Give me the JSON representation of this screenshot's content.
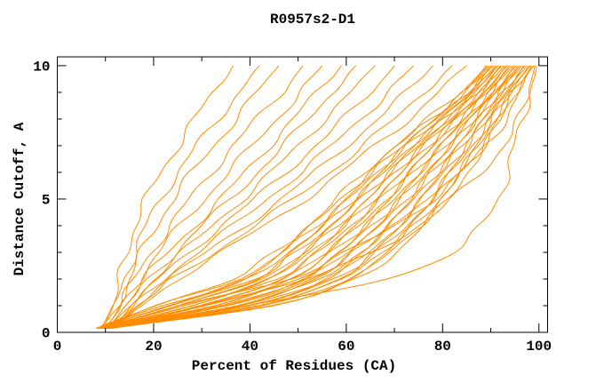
{
  "figure": {
    "title": "R0957s2-D1",
    "xlabel": "Percent of Residues (CA)",
    "ylabel": "Distance Cutoff, A"
  },
  "colors": {
    "curve": "#ff8c00",
    "axis": "#000000",
    "background": "#ffffff"
  },
  "chart_data": {
    "type": "line",
    "title": "R0957s2-D1",
    "xlabel": "Percent of Residues (CA)",
    "ylabel": "Distance Cutoff, A",
    "xlim": [
      0,
      101.8
    ],
    "ylim": [
      0,
      10.33
    ],
    "x_major_ticks": [
      0,
      20,
      40,
      60,
      80,
      100
    ],
    "x_minor_ticks": [
      10,
      30,
      50,
      70,
      90
    ],
    "y_major_ticks": [
      0,
      5,
      10
    ],
    "y_minor_ticks": [
      1,
      2,
      3,
      4,
      6,
      7,
      8,
      9
    ],
    "grid": false,
    "legend": false,
    "line_color": "#ff8c00",
    "curve_y_levels": [
      0.15,
      1,
      2,
      3,
      4,
      5,
      6,
      7,
      8,
      9,
      10
    ],
    "curves": [
      [
        9,
        11.5,
        13,
        14.5,
        16,
        18.5,
        21.5,
        25,
        28.5,
        32.5,
        36.5
      ],
      [
        9,
        12,
        14,
        16,
        18.5,
        21.5,
        25,
        29,
        33.5,
        37.5,
        42
      ],
      [
        9.5,
        12.5,
        15,
        17.5,
        20.5,
        24,
        28,
        32.5,
        37,
        41.5,
        46
      ],
      [
        10,
        13,
        16,
        19.5,
        23.5,
        27.5,
        32,
        36.5,
        41.5,
        46.5,
        51
      ],
      [
        10,
        13.5,
        17,
        21,
        25.5,
        30.5,
        35.5,
        40.5,
        45.5,
        50.5,
        55
      ],
      [
        10.5,
        14,
        18,
        23,
        28.5,
        34,
        39,
        44,
        49,
        54,
        59
      ],
      [
        10.5,
        14.5,
        19,
        24.5,
        30,
        36,
        41.5,
        47,
        52,
        57,
        62
      ],
      [
        11,
        15,
        20,
        26,
        32,
        38.5,
        44.5,
        50,
        55.5,
        61,
        66
      ],
      [
        11,
        15.5,
        21,
        27.5,
        34,
        41,
        47.5,
        53.5,
        59.5,
        65,
        70
      ],
      [
        11,
        16,
        22,
        29,
        36.5,
        43.5,
        50.5,
        57,
        63,
        68.5,
        74
      ],
      [
        11.5,
        16.5,
        23,
        31,
        39,
        46.5,
        53.5,
        60,
        66.5,
        72.5,
        78
      ],
      [
        11.5,
        17,
        24,
        32.5,
        41,
        49,
        56.5,
        63.5,
        70,
        76,
        82
      ],
      [
        12,
        17.5,
        25,
        34,
        43,
        51.5,
        59,
        66,
        73,
        79,
        85
      ],
      [
        8,
        20,
        37,
        45,
        52,
        58,
        64,
        70,
        77,
        84,
        89
      ],
      [
        8.1,
        20.9,
        37.9,
        45.9,
        52.9,
        58.9,
        64.8,
        70.7,
        77.6,
        84.4,
        89.4
      ],
      [
        8.2,
        21.9,
        38.9,
        46.9,
        53.8,
        59.7,
        65.6,
        71.4,
        78.1,
        84.8,
        89.7
      ],
      [
        8.3,
        22.8,
        39.8,
        47.8,
        54.7,
        60.6,
        66.3,
        72.1,
        78.7,
        85.2,
        90.1
      ],
      [
        8.4,
        23.7,
        40.7,
        48.7,
        55.6,
        61.4,
        67.1,
        72.8,
        79.2,
        85.6,
        90.5
      ],
      [
        8.6,
        24.6,
        41.6,
        49.6,
        56.4,
        62.3,
        67.9,
        73.5,
        79.8,
        86.0,
        90.9
      ],
      [
        8.7,
        25.6,
        42.6,
        50.6,
        57.3,
        63.1,
        68.7,
        74.2,
        80.3,
        86.4,
        91.2
      ],
      [
        8.8,
        26.5,
        43.5,
        51.5,
        58.2,
        64.0,
        69.4,
        74.9,
        80.9,
        86.9,
        91.6
      ],
      [
        8.9,
        27.4,
        44.4,
        52.4,
        59.1,
        64.8,
        70.2,
        75.6,
        81.4,
        87.3,
        92.0
      ],
      [
        9.0,
        28.3,
        45.3,
        53.3,
        60.0,
        65.7,
        71.0,
        76.3,
        82.0,
        87.7,
        92.3
      ],
      [
        9.1,
        29.3,
        46.3,
        54.3,
        60.9,
        66.5,
        71.8,
        77.0,
        82.6,
        88.1,
        92.7
      ],
      [
        9.2,
        30.2,
        47.2,
        55.2,
        61.8,
        67.4,
        72.5,
        77.7,
        83.1,
        88.5,
        93.1
      ],
      [
        9.3,
        31.1,
        48.1,
        56.1,
        62.7,
        68.2,
        73.3,
        78.4,
        83.7,
        88.9,
        93.4
      ],
      [
        9.4,
        32.0,
        49.0,
        57.0,
        63.6,
        69.1,
        74.1,
        79.1,
        84.2,
        89.3,
        93.8
      ],
      [
        9.6,
        33.0,
        50.0,
        58.0,
        64.4,
        69.9,
        74.9,
        79.9,
        84.8,
        89.7,
        94.2
      ],
      [
        9.7,
        33.9,
        50.9,
        58.9,
        65.3,
        70.8,
        75.7,
        80.6,
        85.3,
        90.1,
        94.6
      ],
      [
        9.8,
        34.8,
        51.8,
        59.8,
        66.2,
        71.6,
        76.4,
        81.3,
        85.9,
        90.5,
        94.9
      ],
      [
        9.9,
        35.7,
        52.7,
        60.7,
        67.1,
        72.5,
        77.2,
        82.0,
        86.4,
        90.9,
        95.3
      ],
      [
        10.0,
        36.7,
        53.7,
        61.7,
        68.0,
        73.3,
        78.0,
        82.7,
        87.0,
        91.3,
        95.7
      ],
      [
        10.1,
        37.6,
        54.6,
        62.6,
        68.9,
        74.2,
        78.8,
        83.4,
        87.6,
        91.7,
        96.0
      ],
      [
        10.2,
        38.5,
        55.5,
        63.5,
        69.8,
        75.0,
        79.6,
        84.1,
        88.1,
        92.2,
        96.4
      ],
      [
        10.3,
        39.4,
        56.4,
        64.4,
        70.7,
        75.9,
        80.3,
        84.8,
        88.7,
        92.6,
        96.8
      ],
      [
        10.4,
        40.4,
        57.4,
        65.4,
        71.6,
        76.7,
        81.1,
        85.5,
        89.2,
        93.0,
        97.1
      ],
      [
        10.6,
        41.3,
        58.3,
        66.3,
        72.4,
        77.6,
        81.9,
        86.2,
        89.8,
        93.4,
        97.5
      ],
      [
        10.7,
        42.2,
        59.2,
        67.2,
        73.3,
        78.4,
        82.7,
        86.9,
        90.3,
        93.8,
        97.9
      ],
      [
        10.8,
        43.1,
        60.1,
        68.1,
        74.2,
        79.3,
        83.4,
        87.6,
        90.9,
        94.2,
        98.2
      ],
      [
        10.9,
        44.1,
        61.1,
        69.1,
        75.1,
        80.1,
        84.2,
        88.3,
        91.4,
        94.6,
        98.6
      ],
      [
        11,
        45,
        62,
        70,
        76,
        81,
        85,
        89,
        92,
        95,
        99
      ],
      [
        10,
        25,
        48,
        60,
        70,
        78,
        84,
        89,
        93,
        96,
        98.5
      ],
      [
        10.5,
        30,
        52,
        65,
        75,
        82,
        88,
        92.5,
        96,
        98,
        99.5
      ],
      [
        10,
        40,
        68,
        82,
        88,
        91.5,
        93.5,
        95,
        96.5,
        98,
        99.2
      ]
    ]
  }
}
